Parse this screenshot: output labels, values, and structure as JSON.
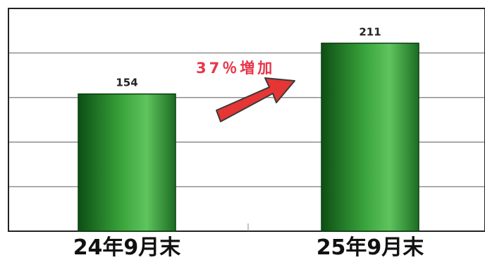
{
  "chart_data": {
    "type": "bar",
    "categories": [
      "24年9月末",
      "25年9月末"
    ],
    "values": [
      154,
      211
    ],
    "ylim": [
      0,
      250
    ],
    "grid": true,
    "annotation": "37％増加",
    "colors": {
      "bar": "#2f9b34",
      "bar_dark": "#0d4f14",
      "bar_light": "#5fc45e",
      "arrow": "#e53535",
      "annotation": "#e8364a",
      "grid": "#8f8f8f",
      "frame": "#222222"
    }
  }
}
